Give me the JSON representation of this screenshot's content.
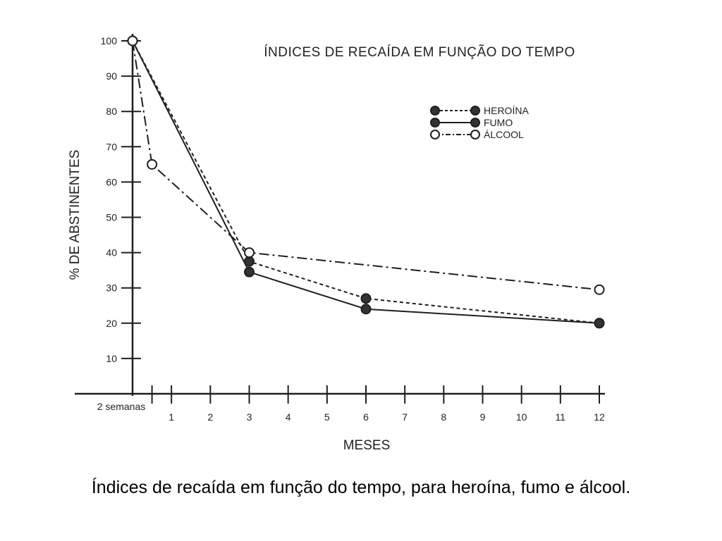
{
  "caption": "Índices de recaída em função do tempo, para heroína, fumo e álcool.",
  "chart_data": {
    "type": "line",
    "title": "ÍNDICES DE RECAÍDA EM FUNÇÃO DO TEMPO",
    "xlabel": "MESES",
    "ylabel": "% DE ABSTINENTES",
    "ylim": [
      0,
      100
    ],
    "xlim": [
      0,
      12
    ],
    "y_ticks": [
      10,
      20,
      30,
      40,
      50,
      60,
      70,
      80,
      90,
      100
    ],
    "x_ticks": [
      1,
      2,
      3,
      4,
      5,
      6,
      7,
      8,
      9,
      10,
      11,
      12
    ],
    "x_special_label": {
      "x": 0.5,
      "label": "2 semanas"
    },
    "grid": false,
    "legend_position": "top-right",
    "series": [
      {
        "name": "HEROÍNA",
        "style": "dashed",
        "marker": "filled",
        "points": [
          [
            0,
            100
          ],
          [
            3,
            37.5
          ],
          [
            6,
            27
          ],
          [
            12,
            20
          ]
        ]
      },
      {
        "name": "FUMO",
        "style": "solid",
        "marker": "filled",
        "points": [
          [
            0,
            100
          ],
          [
            3,
            34.5
          ],
          [
            6,
            24
          ],
          [
            12,
            20
          ]
        ]
      },
      {
        "name": "ÁLCOOL",
        "style": "dashdot",
        "marker": "open",
        "points": [
          [
            0,
            100
          ],
          [
            0.5,
            65
          ],
          [
            3,
            40
          ],
          [
            12,
            29.5
          ]
        ]
      }
    ]
  }
}
